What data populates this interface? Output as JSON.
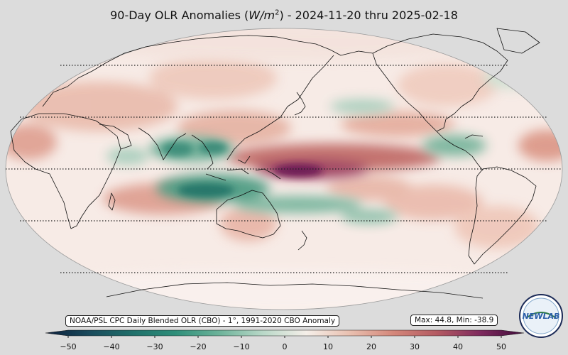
{
  "title": {
    "prefix": "90-Day OLR Anomalies (",
    "unit_base": "W/m",
    "unit_exp": "2",
    "suffix": ") - 2024-11-20 thru 2025-02-18"
  },
  "source_label": "NOAA/PSL CPC Daily Blended OLR (CBO) - 1°, 1991-2020 CBO Anomaly",
  "stats_label": "Max: 44.8,  Min: -38.9",
  "colorbar": {
    "min": -50,
    "max": 50,
    "ticks": [
      "−50",
      "−40",
      "−30",
      "−20",
      "−10",
      "0",
      "10",
      "20",
      "30",
      "40",
      "50"
    ],
    "colors": [
      "#0c1f3c",
      "#1a4a5c",
      "#1f6f6a",
      "#2f8f7a",
      "#6db39a",
      "#b9d8c8",
      "#f5efe9",
      "#e9c0b0",
      "#d4877a",
      "#b45a62",
      "#7e2a5e",
      "#3f0a3a"
    ]
  },
  "logo_text": "NEWLAB"
}
